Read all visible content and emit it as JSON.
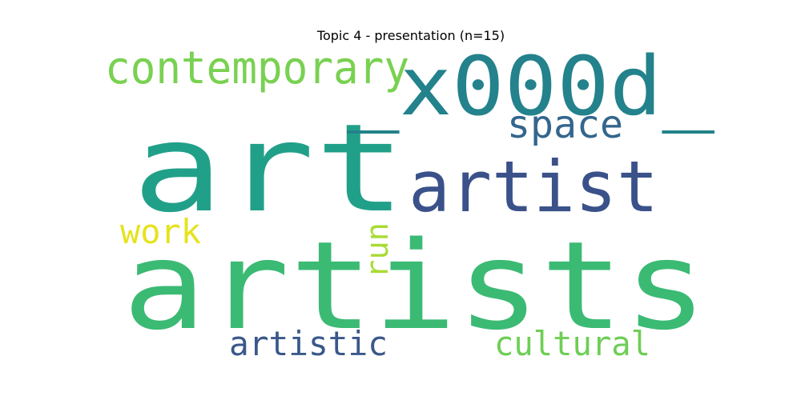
{
  "title": "Topic 4 - presentation (n=15)",
  "words": [
    {
      "text": "art",
      "color": "#21a089"
    },
    {
      "text": "artists",
      "color": "#3bba74"
    },
    {
      "text": "_x000d_",
      "color": "#23828b"
    },
    {
      "text": "artist",
      "color": "#3a518a"
    },
    {
      "text": "contemporary",
      "color": "#79d151"
    },
    {
      "text": "space",
      "color": "#33668d"
    },
    {
      "text": "work",
      "color": "#e6e31f"
    },
    {
      "text": "run",
      "color": "#a8db34"
    },
    {
      "text": "artistic",
      "color": "#3a5889"
    },
    {
      "text": "cultural",
      "color": "#6ece56"
    }
  ]
}
